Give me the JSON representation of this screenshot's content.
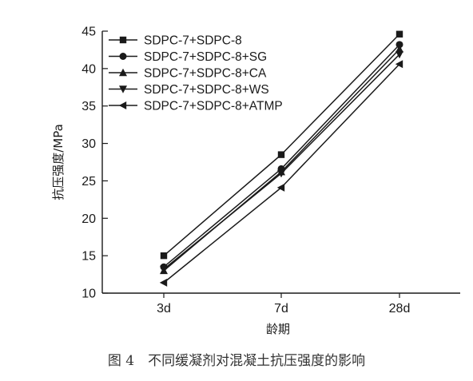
{
  "caption": "图 4　不同缓凝剂对混凝土抗压强度的影响",
  "chart_data": {
    "type": "line",
    "xlabel": "龄期",
    "ylabel": "抗压强度/MPa",
    "categories": [
      "3d",
      "7d",
      "28d"
    ],
    "ylim": [
      10,
      45
    ],
    "yticks": [
      10,
      15,
      20,
      25,
      30,
      35,
      40,
      45
    ],
    "grid": false,
    "legend_position": "top-left",
    "series": [
      {
        "name": "SDPC-7+SDPC-8",
        "marker": "square",
        "values": [
          15.0,
          28.5,
          44.6
        ]
      },
      {
        "name": "SDPC-7+SDPC-8+SG",
        "marker": "circle",
        "values": [
          13.5,
          26.6,
          43.2
        ]
      },
      {
        "name": "SDPC-7+SDPC-8+CA",
        "marker": "triangle-up",
        "values": [
          13.0,
          26.2,
          42.6
        ]
      },
      {
        "name": "SDPC-7+SDPC-8+WS",
        "marker": "triangle-down",
        "values": [
          13.2,
          26.0,
          41.9
        ]
      },
      {
        "name": "SDPC-7+SDPC-8+ATMP",
        "marker": "triangle-left",
        "values": [
          11.4,
          24.1,
          40.6
        ]
      }
    ],
    "colors": {
      "line": "#1a1a1a",
      "marker": "#1a1a1a",
      "axis": "#1a1a1a"
    }
  }
}
